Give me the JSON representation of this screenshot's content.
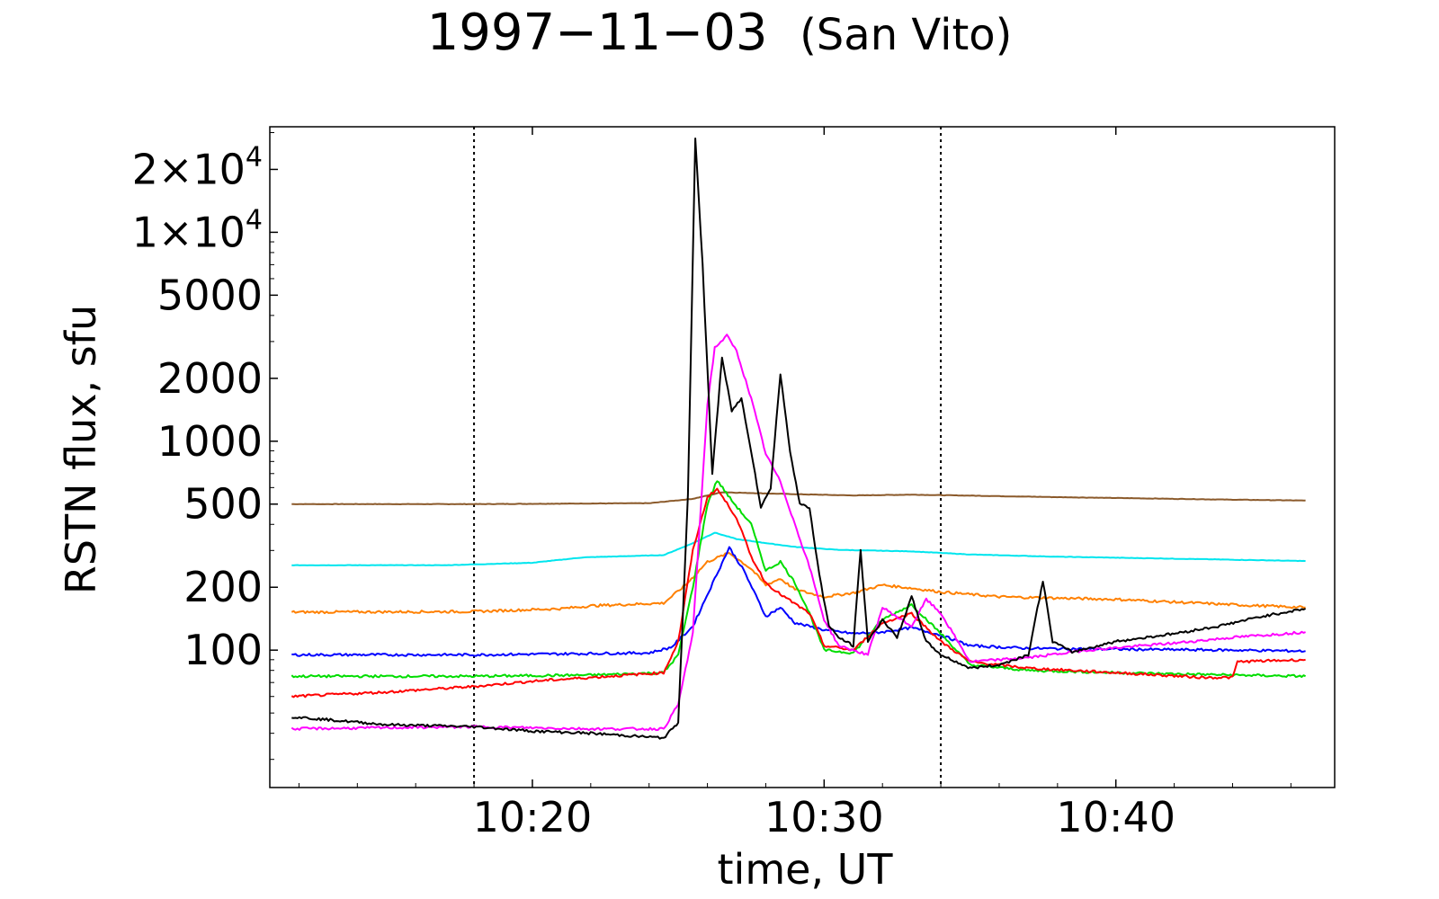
{
  "chart_data": {
    "type": "line",
    "title": "1997−11−03",
    "subtitle": "(San Vito)",
    "xlabel": "time,  UT",
    "ylabel": "RSTN flux,  sfu",
    "yscale": "log",
    "xlim": [
      "10:11:00",
      "10:47:30"
    ],
    "ylim": [
      22,
      32000
    ],
    "x_ticks": [
      "10:20",
      "10:30",
      "10:40"
    ],
    "y_ticks": [
      {
        "value": 20000,
        "label": "2×10",
        "exp": "4"
      },
      {
        "value": 10000,
        "label": "1×10",
        "exp": "4"
      },
      {
        "value": 5000,
        "label": "5000"
      },
      {
        "value": 2000,
        "label": "2000"
      },
      {
        "value": 1000,
        "label": "1000"
      },
      {
        "value": 500,
        "label": "500"
      },
      {
        "value": 200,
        "label": "200"
      },
      {
        "value": 100,
        "label": "100"
      }
    ],
    "vlines": [
      "10:18:00",
      "10:34:00"
    ],
    "grid": false,
    "legend": "none",
    "series": [
      {
        "color": "#8b5a2b",
        "points": [
          [
            "10:11:45",
            500
          ],
          [
            "10:18:00",
            500
          ],
          [
            "10:24:00",
            505
          ],
          [
            "10:25:30",
            530
          ],
          [
            "10:26:30",
            570
          ],
          [
            "10:28:30",
            560
          ],
          [
            "10:31:00",
            550
          ],
          [
            "10:33:00",
            555
          ],
          [
            "10:38:00",
            540
          ],
          [
            "10:44:00",
            525
          ],
          [
            "10:46:30",
            520
          ]
        ]
      },
      {
        "color": "#00e5ee",
        "points": [
          [
            "10:11:45",
            255
          ],
          [
            "10:17:00",
            255
          ],
          [
            "10:20:00",
            262
          ],
          [
            "10:21:45",
            278
          ],
          [
            "10:24:30",
            285
          ],
          [
            "10:25:30",
            325
          ],
          [
            "10:26:15",
            365
          ],
          [
            "10:27:00",
            340
          ],
          [
            "10:28:15",
            322
          ],
          [
            "10:29:00",
            312
          ],
          [
            "10:30:30",
            302
          ],
          [
            "10:33:00",
            297
          ],
          [
            "10:35:00",
            287
          ],
          [
            "10:38:00",
            280
          ],
          [
            "10:42:00",
            274
          ],
          [
            "10:46:30",
            267
          ]
        ]
      },
      {
        "color": "#ff8000",
        "points": [
          [
            "10:11:45",
            152
          ],
          [
            "10:18:00",
            153
          ],
          [
            "10:21:00",
            158
          ],
          [
            "10:22:00",
            163
          ],
          [
            "10:24:30",
            168
          ],
          [
            "10:25:15",
            205
          ],
          [
            "10:26:00",
            265
          ],
          [
            "10:26:45",
            292
          ],
          [
            "10:27:30",
            245
          ],
          [
            "10:28:00",
            205
          ],
          [
            "10:28:30",
            220
          ],
          [
            "10:29:00",
            195
          ],
          [
            "10:30:00",
            180
          ],
          [
            "10:31:00",
            188
          ],
          [
            "10:32:00",
            205
          ],
          [
            "10:33:00",
            198
          ],
          [
            "10:34:00",
            190
          ],
          [
            "10:36:00",
            180
          ],
          [
            "10:40:00",
            175
          ],
          [
            "10:44:00",
            165
          ],
          [
            "10:46:30",
            160
          ]
        ]
      },
      {
        "color": "#0000ff",
        "points": [
          [
            "10:11:45",
            95
          ],
          [
            "10:18:00",
            95
          ],
          [
            "10:24:00",
            97
          ],
          [
            "10:24:45",
            103
          ],
          [
            "10:25:30",
            130
          ],
          [
            "10:26:15",
            220
          ],
          [
            "10:26:45",
            310
          ],
          [
            "10:27:15",
            240
          ],
          [
            "10:28:00",
            145
          ],
          [
            "10:28:30",
            160
          ],
          [
            "10:29:00",
            135
          ],
          [
            "10:30:00",
            125
          ],
          [
            "10:31:00",
            120
          ],
          [
            "10:32:00",
            122
          ],
          [
            "10:33:00",
            128
          ],
          [
            "10:34:00",
            118
          ],
          [
            "10:35:00",
            105
          ],
          [
            "10:37:00",
            102
          ],
          [
            "10:40:00",
            101
          ],
          [
            "10:44:00",
            100
          ],
          [
            "10:46:30",
            99
          ]
        ]
      },
      {
        "color": "#00dd00",
        "points": [
          [
            "10:11:45",
            75
          ],
          [
            "10:18:00",
            75
          ],
          [
            "10:22:00",
            76
          ],
          [
            "10:24:30",
            78
          ],
          [
            "10:25:00",
            95
          ],
          [
            "10:25:30",
            200
          ],
          [
            "10:26:00",
            500
          ],
          [
            "10:26:20",
            650
          ],
          [
            "10:26:50",
            520
          ],
          [
            "10:27:30",
            400
          ],
          [
            "10:28:00",
            240
          ],
          [
            "10:28:30",
            265
          ],
          [
            "10:29:00",
            210
          ],
          [
            "10:29:30",
            150
          ],
          [
            "10:30:00",
            100
          ],
          [
            "10:31:00",
            97
          ],
          [
            "10:32:00",
            140
          ],
          [
            "10:33:00",
            165
          ],
          [
            "10:34:00",
            120
          ],
          [
            "10:35:00",
            85
          ],
          [
            "10:37:00",
            80
          ],
          [
            "10:40:00",
            78
          ],
          [
            "10:44:00",
            76
          ],
          [
            "10:46:30",
            75
          ]
        ]
      },
      {
        "color": "#ff0000",
        "points": [
          [
            "10:11:45",
            60
          ],
          [
            "10:15:00",
            63
          ],
          [
            "10:18:00",
            67
          ],
          [
            "10:20:00",
            71
          ],
          [
            "10:22:00",
            74
          ],
          [
            "10:24:30",
            78
          ],
          [
            "10:25:00",
            110
          ],
          [
            "10:25:30",
            300
          ],
          [
            "10:26:00",
            540
          ],
          [
            "10:26:20",
            590
          ],
          [
            "10:27:00",
            430
          ],
          [
            "10:27:30",
            280
          ],
          [
            "10:28:00",
            210
          ],
          [
            "10:28:30",
            185
          ],
          [
            "10:29:30",
            150
          ],
          [
            "10:30:00",
            105
          ],
          [
            "10:31:00",
            100
          ],
          [
            "10:32:00",
            135
          ],
          [
            "10:33:00",
            150
          ],
          [
            "10:34:00",
            110
          ],
          [
            "10:35:00",
            88
          ],
          [
            "10:37:00",
            82
          ],
          [
            "10:40:00",
            78
          ],
          [
            "10:43:00",
            74
          ],
          [
            "10:44:00",
            74
          ],
          [
            "10:44:10",
            88
          ],
          [
            "10:46:30",
            90
          ]
        ]
      },
      {
        "color": "#ff00ff",
        "points": [
          [
            "10:11:45",
            42
          ],
          [
            "10:18:00",
            43
          ],
          [
            "10:22:00",
            42
          ],
          [
            "10:24:30",
            42
          ],
          [
            "10:25:00",
            55
          ],
          [
            "10:25:30",
            120
          ],
          [
            "10:26:00",
            1500
          ],
          [
            "10:26:15",
            2800
          ],
          [
            "10:26:40",
            3200
          ],
          [
            "10:27:00",
            2700
          ],
          [
            "10:27:30",
            1600
          ],
          [
            "10:28:00",
            870
          ],
          [
            "10:28:30",
            640
          ],
          [
            "10:29:00",
            400
          ],
          [
            "10:29:30",
            250
          ],
          [
            "10:30:00",
            140
          ],
          [
            "10:30:30",
            105
          ],
          [
            "10:31:30",
            95
          ],
          [
            "10:32:00",
            160
          ],
          [
            "10:33:00",
            130
          ],
          [
            "10:33:30",
            175
          ],
          [
            "10:34:00",
            150
          ],
          [
            "10:35:00",
            88
          ],
          [
            "10:37:00",
            92
          ],
          [
            "10:39:00",
            100
          ],
          [
            "10:42:00",
            108
          ],
          [
            "10:44:00",
            115
          ],
          [
            "10:46:30",
            122
          ]
        ]
      },
      {
        "color": "#000000",
        "points": [
          [
            "10:11:45",
            48
          ],
          [
            "10:15:00",
            44
          ],
          [
            "10:18:00",
            43
          ],
          [
            "10:20:00",
            41
          ],
          [
            "10:22:00",
            40
          ],
          [
            "10:24:30",
            38
          ],
          [
            "10:25:00",
            45
          ],
          [
            "10:25:20",
            560
          ],
          [
            "10:25:35",
            28000
          ],
          [
            "10:25:50",
            7000
          ],
          [
            "10:26:10",
            700
          ],
          [
            "10:26:30",
            2500
          ],
          [
            "10:26:50",
            1400
          ],
          [
            "10:27:10",
            1600
          ],
          [
            "10:27:30",
            900
          ],
          [
            "10:27:50",
            480
          ],
          [
            "10:28:10",
            600
          ],
          [
            "10:28:30",
            2100
          ],
          [
            "10:28:50",
            900
          ],
          [
            "10:29:10",
            500
          ],
          [
            "10:29:30",
            480
          ],
          [
            "10:29:50",
            230
          ],
          [
            "10:30:10",
            130
          ],
          [
            "10:30:30",
            115
          ],
          [
            "10:31:00",
            105
          ],
          [
            "10:31:15",
            300
          ],
          [
            "10:31:30",
            110
          ],
          [
            "10:32:00",
            140
          ],
          [
            "10:32:30",
            115
          ],
          [
            "10:33:00",
            180
          ],
          [
            "10:33:30",
            110
          ],
          [
            "10:34:00",
            95
          ],
          [
            "10:35:00",
            82
          ],
          [
            "10:36:00",
            85
          ],
          [
            "10:37:00",
            95
          ],
          [
            "10:37:30",
            215
          ],
          [
            "10:37:50",
            110
          ],
          [
            "10:38:30",
            98
          ],
          [
            "10:40:00",
            110
          ],
          [
            "10:42:00",
            120
          ],
          [
            "10:43:30",
            130
          ],
          [
            "10:45:00",
            145
          ],
          [
            "10:46:30",
            158
          ]
        ]
      }
    ]
  }
}
